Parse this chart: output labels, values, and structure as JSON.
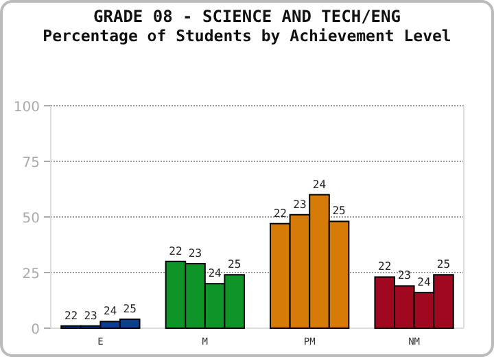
{
  "chart_data": {
    "type": "bar",
    "title": "GRADE 08 - SCIENCE AND TECH/ENG",
    "subtitle": "Percentage of Students by Achievement Level",
    "categories": [
      "E",
      "M",
      "PM",
      "NM"
    ],
    "series": [
      {
        "name": "22",
        "colors": [
          "#0b3f8c",
          "#0f9427",
          "#d67b07",
          "#a0081f"
        ],
        "values": [
          1,
          30,
          47,
          23
        ]
      },
      {
        "name": "23",
        "colors": [
          "#0b3f8c",
          "#0f9427",
          "#d67b07",
          "#a0081f"
        ],
        "values": [
          1,
          29,
          51,
          19
        ]
      },
      {
        "name": "24",
        "colors": [
          "#0b3f8c",
          "#0f9427",
          "#d67b07",
          "#a0081f"
        ],
        "values": [
          3,
          20,
          60,
          16
        ]
      },
      {
        "name": "25",
        "colors": [
          "#0b3f8c",
          "#0f9427",
          "#d67b07",
          "#a0081f"
        ],
        "values": [
          4,
          24,
          48,
          24
        ]
      }
    ],
    "ylim": [
      0,
      100
    ],
    "yticks": [
      0,
      25,
      50,
      75,
      100
    ],
    "grid": "y"
  }
}
